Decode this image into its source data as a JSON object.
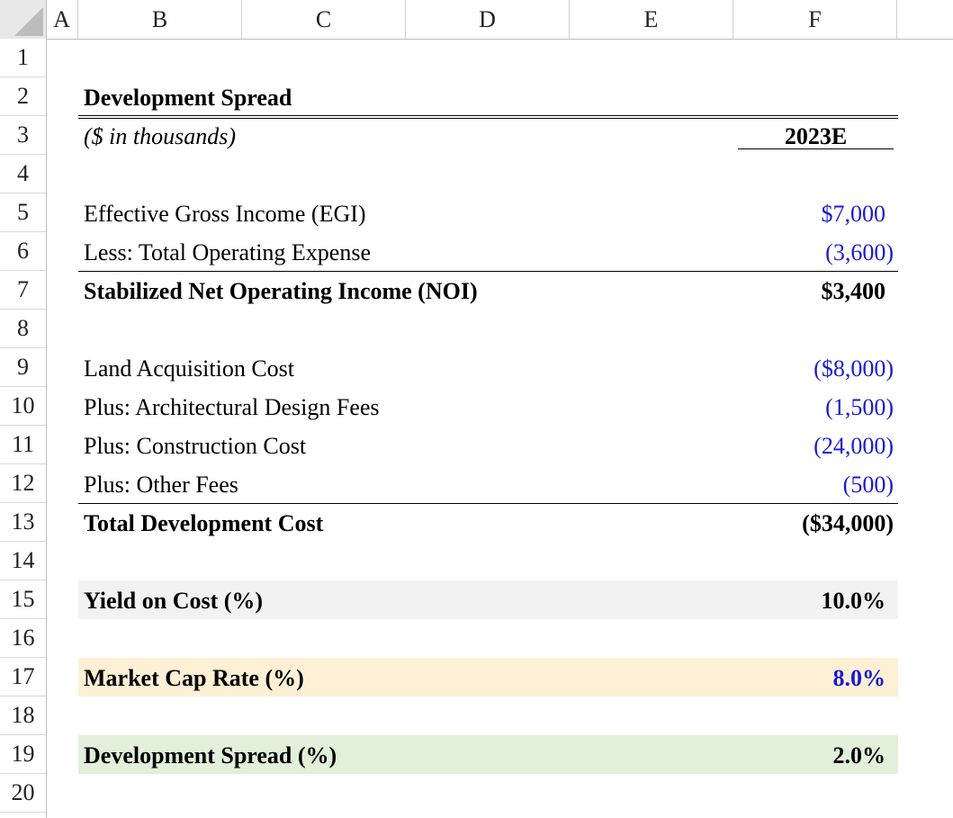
{
  "columns": [
    "A",
    "B",
    "C",
    "D",
    "E",
    "F"
  ],
  "rows": [
    "1",
    "2",
    "3",
    "4",
    "5",
    "6",
    "7",
    "8",
    "9",
    "10",
    "11",
    "12",
    "13",
    "14",
    "15",
    "16",
    "17",
    "18",
    "19",
    "20"
  ],
  "title": "Development Spread",
  "units": "($ in thousands)",
  "period": "2023E",
  "noi": {
    "egi_label": "Effective Gross Income (EGI)",
    "egi_value": "$7,000",
    "opex_label": "Less: Total Operating Expense",
    "opex_value": "(3,600)",
    "total_label": "Stabilized Net Operating Income (NOI)",
    "total_value": "$3,400"
  },
  "costs": {
    "land_label": "Land Acquisition Cost",
    "land_value": "($8,000)",
    "design_label": "Plus: Architectural Design Fees",
    "design_value": "(1,500)",
    "construction_label": "Plus: Construction Cost",
    "construction_value": "(24,000)",
    "other_label": "Plus: Other Fees",
    "other_value": "(500)",
    "total_label": "Total Development Cost",
    "total_value": "($34,000)"
  },
  "yield": {
    "label": "Yield on Cost (%)",
    "value": "10.0%"
  },
  "cap_rate": {
    "label": "Market Cap Rate (%)",
    "value": "8.0%"
  },
  "spread": {
    "label": "Development Spread (%)",
    "value": "2.0%"
  },
  "colors": {
    "input_blue": "#1a1ad4",
    "yield_fill": "#f2f2f2",
    "cap_fill": "#fdf0d5",
    "spread_fill": "#e2efda"
  }
}
